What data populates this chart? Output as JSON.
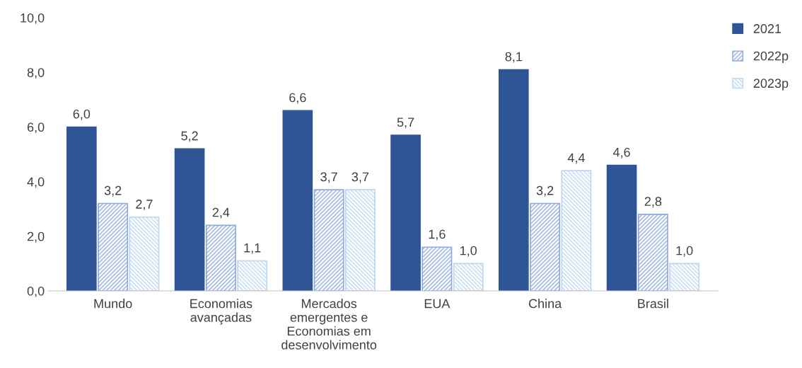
{
  "chart_data": {
    "type": "bar",
    "categories": [
      "Mundo",
      "Economias\navançadas",
      "Mercados\nemergentes e\nEconomias em\ndesenvolvimento",
      "EUA",
      "China",
      "Brasil"
    ],
    "series": [
      {
        "name": "2021",
        "color": "#2f5597",
        "values": [
          6.0,
          5.2,
          6.6,
          5.7,
          8.1,
          4.6
        ],
        "value_labels": [
          "6,0",
          "5,2",
          "6,6",
          "5,7",
          "8,1",
          "4,6"
        ]
      },
      {
        "name": "2022p",
        "color": "#8faadc",
        "values": [
          3.2,
          2.4,
          3.7,
          1.6,
          3.2,
          2.8
        ],
        "value_labels": [
          "3,2",
          "2,4",
          "3,7",
          "1,6",
          "3,2",
          "2,8"
        ]
      },
      {
        "name": "2023p",
        "color": "#bdd7ee",
        "values": [
          2.7,
          1.1,
          3.7,
          1.0,
          4.4,
          1.0
        ],
        "value_labels": [
          "2,7",
          "1,1",
          "3,7",
          "1,0",
          "4,4",
          "1,0"
        ]
      }
    ],
    "ylim": [
      0,
      10
    ],
    "yticks": [
      {
        "value": 0,
        "label": "0,0"
      },
      {
        "value": 2,
        "label": "2,0"
      },
      {
        "value": 4,
        "label": "4,0"
      },
      {
        "value": 6,
        "label": "6,0"
      },
      {
        "value": 8,
        "label": "8,0"
      },
      {
        "value": 10,
        "label": "10,0"
      }
    ],
    "grid": false,
    "legend": "top right"
  }
}
